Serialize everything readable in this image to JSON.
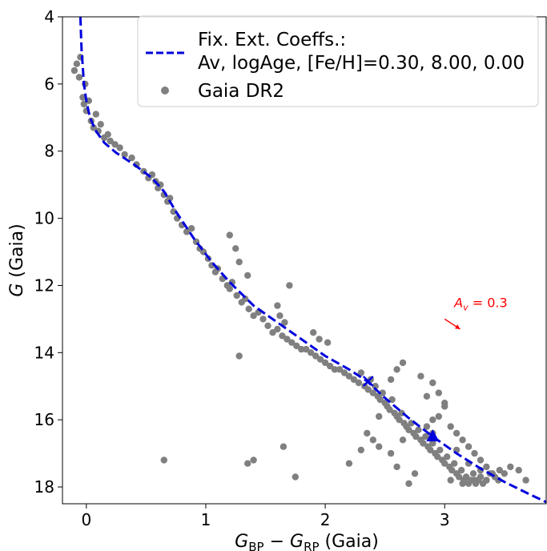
{
  "chart_data": {
    "type": "scatter",
    "xlabel": "G_BP − G_RP (Gaia)",
    "ylabel": "G (Gaia)",
    "xlabel_parts": {
      "main": "G",
      "sub1": "BP",
      "minus": " − ",
      "main2": "G",
      "sub2": "RP",
      "suffix": " (Gaia)"
    },
    "ylabel_parts": {
      "italic": "G",
      "suffix": " (Gaia)"
    },
    "xlim": [
      -0.2,
      3.85
    ],
    "ylim": [
      18.5,
      4.0
    ],
    "y_inverted": true,
    "x_ticks": [
      0,
      1,
      2,
      3
    ],
    "x_tick_labels": [
      "0",
      "1",
      "2",
      "3"
    ],
    "y_ticks": [
      4,
      6,
      8,
      10,
      12,
      14,
      16,
      18
    ],
    "y_tick_labels": [
      "4",
      "6",
      "8",
      "10",
      "12",
      "14",
      "16",
      "18"
    ],
    "grid": false,
    "legend_position": "top-right",
    "series": [
      {
        "name": "Fix. Ext. Coeffs.:",
        "name_line2": "Av, logAge, [Fe/H]=0.30, 8.00, 0.00",
        "kind": "line",
        "style": "dashed",
        "color": "#0000dd",
        "x": [
          -0.05,
          -0.045,
          -0.04,
          -0.03,
          -0.02,
          0.0,
          0.03,
          0.08,
          0.15,
          0.25,
          0.4,
          0.55,
          0.65,
          0.75,
          0.9,
          1.05,
          1.2,
          1.4,
          1.6,
          1.8,
          2.0,
          2.2,
          2.35,
          2.5,
          2.7,
          2.9,
          3.1,
          3.3,
          3.5,
          3.7,
          3.85
        ],
        "y": [
          4.0,
          4.5,
          5.0,
          5.5,
          6.0,
          6.5,
          7.0,
          7.4,
          7.75,
          8.05,
          8.4,
          8.8,
          9.2,
          9.8,
          10.6,
          11.3,
          11.9,
          12.6,
          13.1,
          13.6,
          14.1,
          14.5,
          14.85,
          15.35,
          15.95,
          16.5,
          17.0,
          17.45,
          17.85,
          18.2,
          18.45
        ]
      },
      {
        "name": "Gaia DR2",
        "kind": "scatter",
        "color": "#808080",
        "x": [
          -0.1,
          -0.08,
          -0.06,
          -0.05,
          -0.03,
          -0.02,
          -0.01,
          0.0,
          0.02,
          0.04,
          0.06,
          0.08,
          0.1,
          0.12,
          0.15,
          0.18,
          0.2,
          0.24,
          0.28,
          0.32,
          0.38,
          0.42,
          0.48,
          0.52,
          0.55,
          0.58,
          0.6,
          0.62,
          0.65,
          0.68,
          0.7,
          0.73,
          0.76,
          0.8,
          0.84,
          0.88,
          0.92,
          0.95,
          0.98,
          1.02,
          1.05,
          1.08,
          1.1,
          1.14,
          1.18,
          1.2,
          1.22,
          1.26,
          1.3,
          1.33,
          1.36,
          1.4,
          1.44,
          1.48,
          1.52,
          1.56,
          1.6,
          1.64,
          1.68,
          1.72,
          1.76,
          1.8,
          1.84,
          1.88,
          1.92,
          1.96,
          2.0,
          2.04,
          2.08,
          2.12,
          2.16,
          2.2,
          2.24,
          2.28,
          2.3,
          2.33,
          2.36,
          2.38,
          2.4,
          2.42,
          2.44,
          2.46,
          2.48,
          2.5,
          2.52,
          2.54,
          2.56,
          2.58,
          2.6,
          2.62,
          2.64,
          2.66,
          2.68,
          2.7,
          2.72,
          2.74,
          2.76,
          2.78,
          2.8,
          2.82,
          2.84,
          2.86,
          2.88,
          2.9,
          2.92,
          2.94,
          2.96,
          2.98,
          3.0,
          3.02,
          3.04,
          3.06,
          3.08,
          3.1,
          3.12,
          3.14,
          3.16,
          3.18,
          3.2,
          3.22,
          3.24,
          3.26,
          3.28,
          3.3,
          3.32,
          3.35,
          3.38,
          3.42,
          3.46,
          3.5,
          3.55,
          3.62,
          3.68,
          1.2,
          1.25,
          1.28,
          1.35,
          1.6,
          1.62,
          1.66,
          1.7,
          1.9,
          1.95,
          2.02,
          2.9,
          2.95,
          3.0,
          2.85,
          2.8,
          2.6,
          2.65,
          2.55,
          2.45,
          2.4,
          2.3,
          1.28,
          0.65,
          1.35,
          1.4,
          1.65,
          1.75,
          2.2,
          2.35,
          2.45,
          2.55,
          2.6,
          2.75,
          2.7,
          2.65,
          2.9,
          3.05,
          3.1,
          3.15,
          3.2,
          3.25,
          3.3,
          3.35,
          3.4,
          3.45,
          3.0,
          2.95,
          2.85,
          3.05,
          3.15,
          3.25,
          3.35,
          2.9,
          3.1,
          3.2,
          3.3
        ],
        "y": [
          5.6,
          5.4,
          5.8,
          5.2,
          6.4,
          6.6,
          6.0,
          6.8,
          6.5,
          7.1,
          7.3,
          6.9,
          7.4,
          7.2,
          7.6,
          7.5,
          7.7,
          7.8,
          7.9,
          8.1,
          8.2,
          8.4,
          8.6,
          8.8,
          8.7,
          8.9,
          9.1,
          9.0,
          9.3,
          9.5,
          9.4,
          9.8,
          10.0,
          10.2,
          10.4,
          10.3,
          10.7,
          10.9,
          11.0,
          11.2,
          11.4,
          11.6,
          11.5,
          11.8,
          12.0,
          12.1,
          11.9,
          12.3,
          12.5,
          12.4,
          12.7,
          12.9,
          12.8,
          13.0,
          13.2,
          13.4,
          13.3,
          13.5,
          13.6,
          13.7,
          13.8,
          13.9,
          13.9,
          14.0,
          14.1,
          14.2,
          14.3,
          14.4,
          14.5,
          14.5,
          14.6,
          14.7,
          14.8,
          14.9,
          14.6,
          15.0,
          15.1,
          14.8,
          15.2,
          15.0,
          15.3,
          15.4,
          15.2,
          15.5,
          15.6,
          15.7,
          15.4,
          15.8,
          15.9,
          16.0,
          15.8,
          16.1,
          16.2,
          16.3,
          16.1,
          16.4,
          16.5,
          16.3,
          16.6,
          16.7,
          16.5,
          16.8,
          16.9,
          16.7,
          17.0,
          17.1,
          16.9,
          17.2,
          17.3,
          17.1,
          17.4,
          17.5,
          17.3,
          17.6,
          17.7,
          17.5,
          17.8,
          17.7,
          17.9,
          17.8,
          17.6,
          17.9,
          17.8,
          17.7,
          17.9,
          17.8,
          17.6,
          17.7,
          17.5,
          17.6,
          17.4,
          17.5,
          17.8,
          10.5,
          10.9,
          11.3,
          11.7,
          12.6,
          12.9,
          13.1,
          12.0,
          13.4,
          13.6,
          13.7,
          14.9,
          15.2,
          15.5,
          15.3,
          14.7,
          14.5,
          14.3,
          14.8,
          15.9,
          16.6,
          16.9,
          14.1,
          17.2,
          17.3,
          17.2,
          16.8,
          17.7,
          17.3,
          16.4,
          16.8,
          17.0,
          17.4,
          17.6,
          17.9,
          16.6,
          16.0,
          16.2,
          16.4,
          16.6,
          16.8,
          17.0,
          17.2,
          17.4,
          17.6,
          17.8,
          15.6,
          15.9,
          16.2,
          17.8,
          17.9,
          17.8,
          17.8,
          16.4,
          16.9,
          17.3,
          17.5
        ]
      }
    ],
    "markers": [
      {
        "shape": "x",
        "x": 2.36,
        "y": 14.85,
        "color": "#0000dd"
      },
      {
        "shape": "triangle",
        "x": 2.9,
        "y": 16.5,
        "color": "#0000dd"
      }
    ],
    "annotation": {
      "text_italic": "A",
      "text_sub": "v",
      "text_rest": " = 0.3",
      "color": "#ff0000",
      "arrow_from": [
        3.0,
        13.0
      ],
      "arrow_to": [
        3.13,
        13.3
      ],
      "text_at": [
        3.08,
        12.65
      ]
    }
  }
}
